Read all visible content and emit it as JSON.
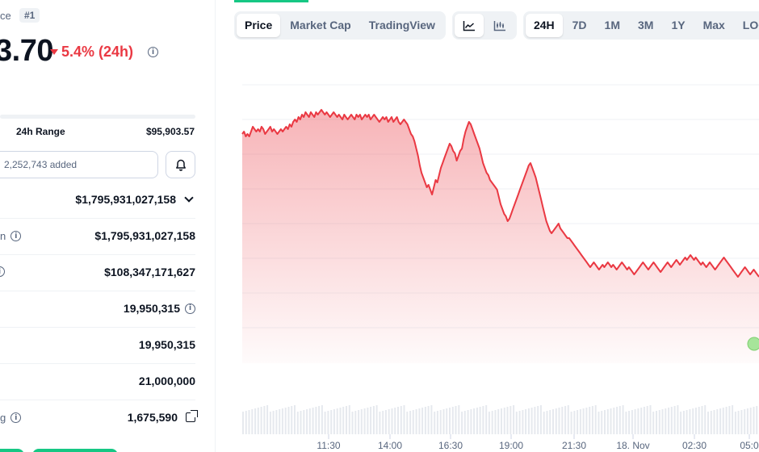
{
  "coin": {
    "crumb": "ce",
    "rank": "#1",
    "price": "3.70",
    "change": "5.4% (24h)"
  },
  "range": {
    "label": "24h Range",
    "high": "$95,903.57"
  },
  "watchlist": {
    "added": "2,252,743 added"
  },
  "stats": [
    {
      "label": "",
      "value": "$1,795,931,027,158",
      "suffix": "chevron-down-icon"
    },
    {
      "label": "n",
      "value": "$1,795,931,027,158",
      "suffix": ""
    },
    {
      "label": "",
      "value": "$108,347,171,627",
      "suffix": ""
    },
    {
      "label": "",
      "value": "19,950,315",
      "suffix": "info-icon"
    },
    {
      "label": "",
      "value": "19,950,315",
      "suffix": ""
    },
    {
      "label": "",
      "value": "21,000,000",
      "suffix": ""
    },
    {
      "label": "g",
      "value": "1,675,590",
      "suffix": "external-link-icon"
    }
  ],
  "toolbar": {
    "views": [
      "Price",
      "Market Cap",
      "TradingView"
    ],
    "active_view": "Price",
    "chart_icons": [
      "line-chart-icon",
      "candlestick-icon"
    ],
    "active_chart_icon": "line-chart-icon",
    "ranges": [
      "24H",
      "7D",
      "1M",
      "3M",
      "1Y",
      "Max",
      "LOG"
    ],
    "active_range": "24H"
  },
  "colors": {
    "down": "#ea3943",
    "up": "#16c784",
    "text": "#0d1421",
    "muted": "#58667e"
  },
  "chart_data": {
    "type": "area",
    "x_ticks": [
      "11:30",
      "14:00",
      "16:30",
      "19:00",
      "21:30",
      "18. Nov",
      "02:30",
      "05:0"
    ],
    "y": [
      78,
      79,
      77,
      78,
      77,
      79,
      81,
      80,
      79,
      80,
      79,
      81,
      80,
      78,
      79,
      80,
      81,
      79,
      80,
      79,
      78,
      79,
      80,
      79,
      80,
      81,
      80,
      82,
      81,
      83,
      84,
      83,
      85,
      84,
      86,
      85,
      87,
      86,
      85,
      87,
      86,
      85,
      87,
      86,
      87,
      88,
      87,
      86,
      87,
      86,
      85,
      86,
      87,
      86,
      85,
      86,
      85,
      84,
      86,
      85,
      84,
      85,
      86,
      85,
      84,
      86,
      85,
      86,
      84,
      85,
      86,
      85,
      86,
      84,
      85,
      86,
      85,
      84,
      83,
      84,
      85,
      84,
      85,
      83,
      84,
      85,
      83,
      84,
      85,
      83,
      82,
      83,
      84,
      83,
      82,
      80,
      78,
      77,
      75,
      72,
      69,
      65,
      62,
      60,
      58,
      56,
      57,
      55,
      53,
      56,
      59,
      58,
      61,
      64,
      66,
      68,
      70,
      72,
      74,
      73,
      71,
      70,
      67,
      69,
      71,
      72,
      76,
      79,
      81,
      83,
      82,
      80,
      78,
      76,
      74,
      72,
      69,
      66,
      64,
      62,
      61,
      59,
      58,
      57,
      56,
      55,
      52,
      49,
      47,
      45,
      44,
      42,
      43,
      45,
      47,
      49,
      51,
      53,
      55,
      57,
      59,
      61,
      63,
      65,
      66,
      64,
      62,
      60,
      57,
      54,
      51,
      48,
      45,
      42,
      40,
      38,
      37,
      38,
      39,
      40,
      41,
      39,
      38,
      37,
      36,
      35,
      35,
      34,
      33,
      32,
      31,
      30,
      29,
      28,
      27,
      26,
      25,
      24,
      23,
      24,
      25,
      24,
      23,
      22,
      23,
      24,
      23,
      24,
      25,
      24,
      23,
      24,
      23,
      22,
      23,
      24,
      25,
      24,
      23,
      22,
      23,
      22,
      21,
      20,
      21,
      22,
      23,
      24,
      25,
      24,
      23,
      22,
      23,
      24,
      25,
      24,
      23,
      22,
      21,
      22,
      23,
      24,
      25,
      24,
      23,
      24,
      25,
      26,
      25,
      24,
      25,
      26,
      27,
      26,
      27,
      28,
      27,
      26,
      27,
      26,
      25,
      24,
      25,
      24,
      23,
      24,
      25,
      24,
      23,
      22,
      23,
      24,
      25,
      26,
      27,
      26,
      25,
      24,
      23,
      22,
      21,
      20,
      19,
      20,
      21,
      22,
      23,
      22,
      21,
      20,
      21,
      22,
      21,
      20,
      19
    ],
    "xlabel": "",
    "ylabel": "",
    "grid": true
  }
}
